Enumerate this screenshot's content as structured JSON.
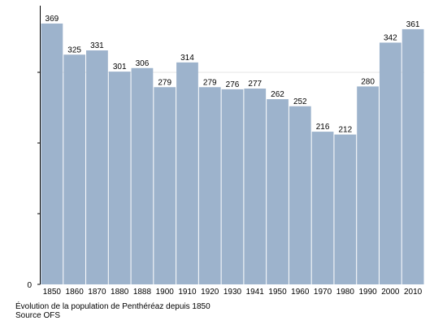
{
  "chart_data": {
    "type": "bar",
    "categories": [
      "1850",
      "1860",
      "1870",
      "1880",
      "1888",
      "1900",
      "1910",
      "1920",
      "1930",
      "1941",
      "1950",
      "1960",
      "1970",
      "1980",
      "1990",
      "2000",
      "2010"
    ],
    "values": [
      369,
      325,
      331,
      301,
      306,
      279,
      314,
      279,
      276,
      277,
      262,
      252,
      216,
      212,
      280,
      342,
      361
    ],
    "ylim": [
      0,
      400
    ],
    "y_tick_labels": [
      "0"
    ],
    "bar_color": "#9db3cc",
    "grid": false
  },
  "caption": {
    "line1": "Évolution de la population de Penthéréaz depuis 1850",
    "line2": "Source OFS"
  }
}
